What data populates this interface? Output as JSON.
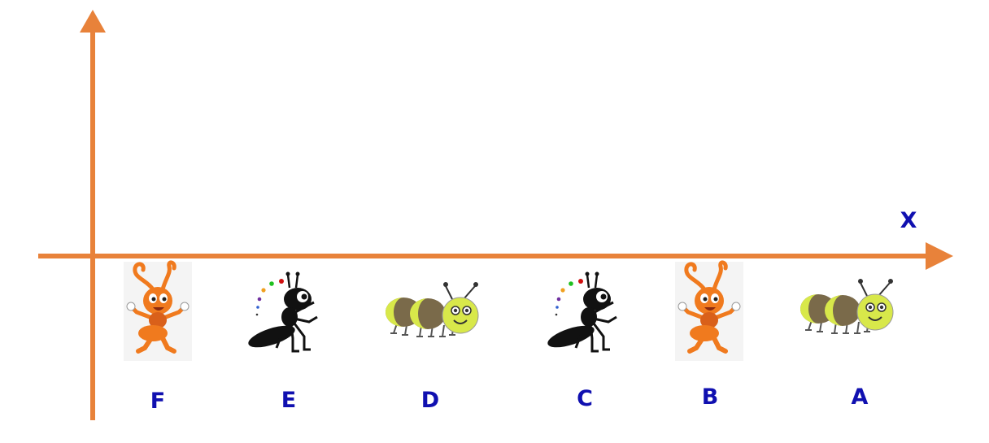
{
  "axis": {
    "color": "#E8823A",
    "x_label": "X"
  },
  "label_color": "#1010B0",
  "items": [
    {
      "label": "F",
      "icon": "orange-ant-icon"
    },
    {
      "label": "E",
      "icon": "black-ant-icon"
    },
    {
      "label": "D",
      "icon": "caterpillar-icon"
    },
    {
      "label": "C",
      "icon": "black-ant-icon"
    },
    {
      "label": "B",
      "icon": "orange-ant-icon"
    },
    {
      "label": "A",
      "icon": "caterpillar-icon"
    }
  ],
  "colors": {
    "ant_orange": "#F07A1E",
    "ant_dark_orange": "#D9601A",
    "ant_black": "#111111",
    "caterpillar_yellow": "#D8E84A",
    "caterpillar_brown": "#7A6A4A",
    "card_bg": "#F4F4F4"
  }
}
